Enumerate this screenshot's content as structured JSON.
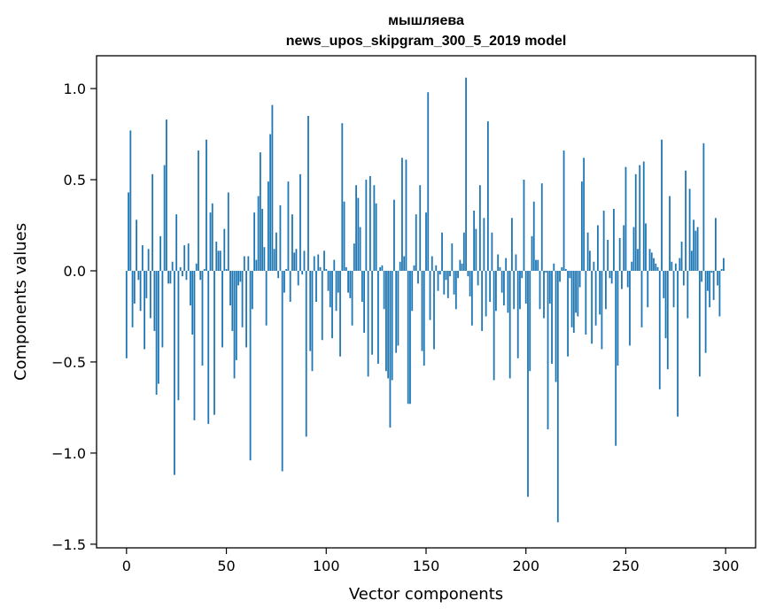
{
  "chart_data": {
    "type": "bar",
    "title": "мышляева",
    "subtitle": "news_upos_skipgram_300_5_2019 model",
    "xlabel": "Vector components",
    "ylabel": "Components values",
    "xlim": [
      -15,
      315
    ],
    "ylim": [
      -1.52,
      1.18
    ],
    "x_ticks": [
      0,
      50,
      100,
      150,
      200,
      250,
      300
    ],
    "x_tick_labels": [
      "0",
      "50",
      "100",
      "150",
      "200",
      "250",
      "300"
    ],
    "y_ticks": [
      -1.5,
      -1.0,
      -0.5,
      0.0,
      0.5,
      1.0
    ],
    "y_tick_labels": [
      "−1.5",
      "−1.0",
      "−0.5",
      "0.0",
      "0.5",
      "1.0"
    ],
    "bar_color": "#1f77b4",
    "grid": false,
    "legend": "none",
    "values": [
      -0.48,
      0.43,
      0.77,
      -0.31,
      -0.18,
      0.28,
      -0.05,
      -0.22,
      0.14,
      -0.43,
      -0.15,
      0.12,
      -0.26,
      0.53,
      -0.33,
      -0.68,
      -0.62,
      0.19,
      -0.42,
      0.58,
      0.83,
      -0.07,
      -0.07,
      0.05,
      -1.12,
      0.31,
      -0.71,
      0.02,
      -0.03,
      0.14,
      -0.05,
      0.15,
      -0.19,
      -0.35,
      -0.82,
      0.04,
      0.66,
      -0.05,
      -0.52,
      0.01,
      0.72,
      -0.84,
      0.32,
      0.37,
      -0.79,
      0.16,
      0.11,
      0.11,
      -0.42,
      0.23,
      0.01,
      0.43,
      -0.19,
      -0.33,
      -0.59,
      -0.49,
      -0.08,
      -0.06,
      -0.31,
      0.08,
      -0.42,
      0.08,
      -1.04,
      -0.21,
      0.32,
      0.06,
      0.41,
      0.65,
      0.34,
      0.13,
      -0.3,
      0.49,
      0.75,
      0.91,
      0.12,
      0.21,
      -0.04,
      0.36,
      -1.1,
      -0.12,
      0.01,
      0.49,
      -0.17,
      0.31,
      0.1,
      0.12,
      -0.08,
      0.53,
      -0.02,
      0.11,
      -0.91,
      0.85,
      -0.44,
      -0.55,
      0.08,
      -0.17,
      0.09,
      0.02,
      -0.38,
      0.11,
      0.01,
      -0.11,
      -0.2,
      -0.37,
      0.06,
      -0.22,
      -0.12,
      -0.47,
      0.81,
      0.38,
      0.02,
      -0.12,
      -0.15,
      -0.3,
      0.15,
      0.47,
      0.4,
      0.24,
      -0.17,
      -0.34,
      0.5,
      -0.58,
      0.52,
      -0.46,
      0.47,
      0.37,
      -0.51,
      0.02,
      0.03,
      -0.21,
      -0.55,
      -0.59,
      -0.86,
      -0.6,
      0.39,
      -0.45,
      -0.41,
      0.05,
      0.62,
      0.08,
      0.61,
      -0.73,
      -0.73,
      -0.22,
      0.03,
      0.31,
      -0.07,
      0.47,
      -0.44,
      -0.52,
      0.32,
      0.98,
      -0.27,
      0.08,
      -0.43,
      0.03,
      -0.11,
      -0.02,
      0.21,
      -0.13,
      -0.05,
      -0.15,
      -0.03,
      0.15,
      -0.13,
      -0.21,
      -0.04,
      0.06,
      0.04,
      0.21,
      1.06,
      -0.03,
      -0.14,
      -0.3,
      0.33,
      0.23,
      -0.08,
      0.47,
      -0.33,
      0.29,
      -0.25,
      0.82,
      -0.17,
      0.21,
      -0.6,
      -0.22,
      0.09,
      0.02,
      -0.12,
      -0.19,
      0.07,
      -0.23,
      -0.59,
      0.29,
      -0.21,
      0.09,
      -0.48,
      -0.21,
      -0.04,
      0.5,
      -0.18,
      -1.24,
      -0.55,
      0.19,
      0.38,
      0.06,
      0.06,
      -0.21,
      0.48,
      -0.26,
      -0.01,
      -0.87,
      -0.18,
      -0.51,
      0.04,
      -0.61,
      -1.38,
      -0.06,
      0.02,
      0.66,
      0.01,
      -0.47,
      -0.04,
      -0.31,
      -0.34,
      -0.23,
      -0.25,
      -0.09,
      0.49,
      0.62,
      -0.35,
      0.21,
      0.11,
      -0.4,
      0.05,
      -0.3,
      0.25,
      -0.24,
      -0.43,
      0.33,
      -0.21,
      0.17,
      -0.04,
      -0.07,
      0.34,
      -0.96,
      -0.52,
      0.18,
      -0.1,
      0.25,
      0.57,
      -0.09,
      -0.41,
      0.05,
      0.24,
      0.53,
      0.12,
      0.58,
      -0.31,
      0.6,
      0.26,
      -0.2,
      0.12,
      0.1,
      0.07,
      0.04,
      0.02,
      -0.65,
      0.72,
      -0.15,
      -0.37,
      -0.54,
      0.41,
      0.05,
      -0.2,
      0.04,
      -0.8,
      0.07,
      0.16,
      -0.08,
      0.55,
      -0.26,
      0.45,
      0.11,
      0.28,
      0.22,
      0.24,
      -0.58,
      -0.06,
      0.7,
      -0.45,
      -0.11,
      -0.2,
      -0.01,
      -0.16,
      0.29,
      -0.08,
      -0.25,
      0.01,
      0.07
    ]
  }
}
